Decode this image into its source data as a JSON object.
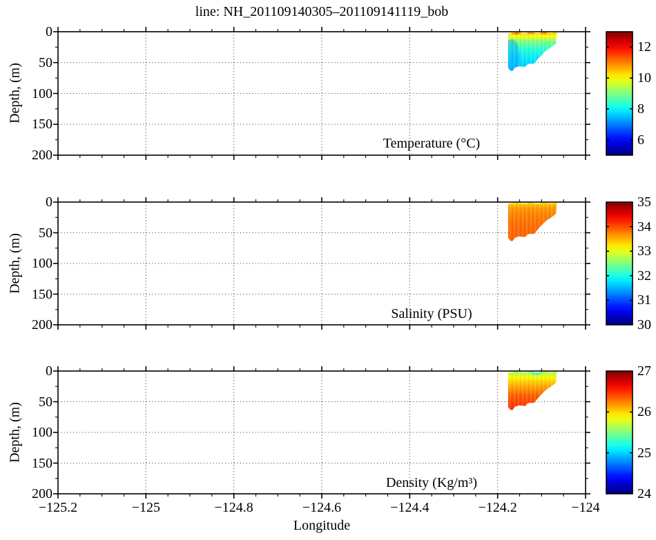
{
  "title": "line: NH_201109140305–201109141119_bob",
  "axes": {
    "xlabel": "Longitude",
    "ylabel": "Depth, (m)",
    "x_range": [
      -125.2,
      -124
    ],
    "x_major_tick_step": 0.2,
    "x_minor_tick_step": 0.05,
    "x_ticks": [
      -125.2,
      -125,
      -124.8,
      -124.6,
      -124.4,
      -124.2,
      -124
    ],
    "x_tick_labels": [
      "−125.2",
      "−125",
      "−124.8",
      "−124.6",
      "−124.4",
      "−124.2",
      "−124"
    ],
    "y_range": [
      0,
      200
    ],
    "y_major_tick_step": 50,
    "y_minor_tick_step": 25,
    "y_ticks": [
      0,
      50,
      100,
      150,
      200
    ],
    "y_tick_labels": [
      "0",
      "50",
      "100",
      "150",
      "200"
    ],
    "grid": "dotted lines at major ticks"
  },
  "colormap": "jet",
  "outline": [
    [
      -124.176,
      3
    ],
    [
      -124.176,
      58
    ],
    [
      -124.173,
      62
    ],
    [
      -124.167,
      64
    ],
    [
      -124.16,
      58
    ],
    [
      -124.151,
      56
    ],
    [
      -124.138,
      57
    ],
    [
      -124.13,
      52
    ],
    [
      -124.118,
      52
    ],
    [
      -124.108,
      44
    ],
    [
      -124.099,
      37
    ],
    [
      -124.089,
      30
    ],
    [
      -124.08,
      26
    ],
    [
      -124.067,
      19
    ],
    [
      -124.066,
      8
    ],
    [
      -124.065,
      1
    ],
    [
      -124.08,
      2
    ],
    [
      -124.095,
      1
    ],
    [
      -124.11,
      2.5
    ],
    [
      -124.125,
      1
    ],
    [
      -124.14,
      2.5
    ],
    [
      -124.155,
      1
    ],
    [
      -124.168,
      2
    ]
  ],
  "chart_data": [
    {
      "type": "heatmap",
      "name": "temperature",
      "annotation": "Temperature (°C)",
      "colorbar": {
        "min": 5,
        "max": 13,
        "ticks": [
          12,
          10,
          8,
          6
        ],
        "tick_labels": [
          "12",
          "10",
          "8",
          "6"
        ]
      },
      "section": {
        "lon_min": -124.176,
        "lon_max": -124.065,
        "depth_min": 0,
        "depth_max": 64
      },
      "profile": [
        [
          0,
          10.5
        ],
        [
          6,
          10.0
        ],
        [
          15,
          9.0
        ],
        [
          28,
          8.3
        ],
        [
          45,
          7.8
        ],
        [
          64,
          7.5
        ]
      ],
      "spots": [
        {
          "lon": -124.158,
          "depth": 1,
          "dlon": 0.01,
          "ddepth": 4,
          "value": 11.2,
          "opacity": 0.7
        },
        {
          "lon": -124.122,
          "depth": 1,
          "dlon": 0.012,
          "ddepth": 3,
          "value": 11.0,
          "opacity": 0.7
        },
        {
          "lon": -124.095,
          "depth": 1.5,
          "dlon": 0.008,
          "ddepth": 3,
          "value": 11.1,
          "opacity": 0.7
        },
        {
          "lon": -124.168,
          "depth": 42,
          "dlon": 0.018,
          "ddepth": 30,
          "value": 7.2,
          "opacity": 0.45
        }
      ]
    },
    {
      "type": "heatmap",
      "name": "salinity",
      "annotation": "Salinity (PSU)",
      "colorbar": {
        "min": 30,
        "max": 35,
        "ticks": [
          35,
          34,
          33,
          32,
          31,
          30
        ],
        "tick_labels": [
          "35",
          "34",
          "33",
          "32",
          "31",
          "30"
        ]
      },
      "section": {
        "lon_min": -124.176,
        "lon_max": -124.065,
        "depth_min": 0,
        "depth_max": 64
      },
      "profile": [
        [
          0,
          33.3
        ],
        [
          8,
          33.6
        ],
        [
          20,
          33.75
        ],
        [
          40,
          33.85
        ],
        [
          64,
          33.9
        ]
      ],
      "spots": []
    },
    {
      "type": "heatmap",
      "name": "density",
      "annotation": "Density (Kg/m³)",
      "colorbar": {
        "min": 24,
        "max": 27,
        "ticks": [
          27,
          26,
          25,
          24
        ],
        "tick_labels": [
          "27",
          "26",
          "25",
          "24"
        ]
      },
      "section": {
        "lon_min": -124.176,
        "lon_max": -124.065,
        "depth_min": 0,
        "depth_max": 64
      },
      "profile": [
        [
          0,
          25.6
        ],
        [
          10,
          25.9
        ],
        [
          22,
          26.1
        ],
        [
          40,
          26.35
        ],
        [
          64,
          26.5
        ]
      ],
      "spots": [
        {
          "lon": -124.112,
          "depth": 2,
          "dlon": 0.014,
          "ddepth": 5,
          "value": 25.2,
          "opacity": 0.6
        },
        {
          "lon": -124.14,
          "depth": 1,
          "dlon": 0.007,
          "ddepth": 3,
          "value": 25.3,
          "opacity": 0.5
        }
      ]
    }
  ]
}
